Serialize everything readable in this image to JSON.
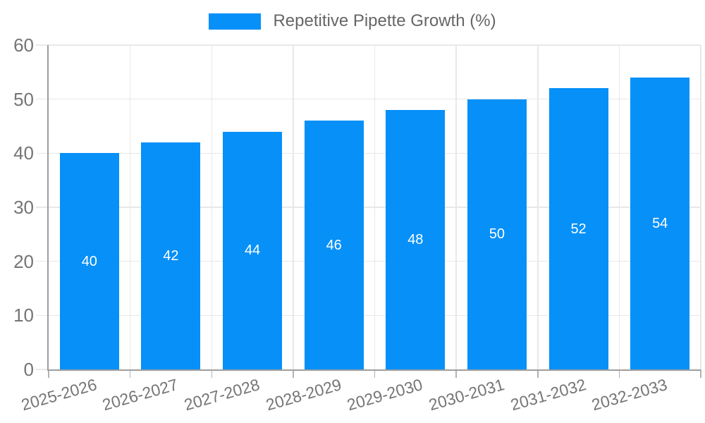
{
  "legend": {
    "label": "Repetitive Pipette Growth (%)"
  },
  "chart_data": {
    "type": "bar",
    "title": "Repetitive Pipette Growth (%)",
    "categories": [
      "2025-2026",
      "2026-2027",
      "2027-2028",
      "2028-2029",
      "2029-2030",
      "2030-2031",
      "2031-2032",
      "2032-2033"
    ],
    "values": [
      40,
      42,
      44,
      46,
      48,
      50,
      52,
      54
    ],
    "data_labels": [
      40,
      42,
      44,
      46,
      48,
      50,
      52,
      54
    ],
    "data_label_position": "inside-center",
    "xlabel": "",
    "ylabel": "",
    "ylim": [
      0,
      60
    ],
    "y_ticks": [
      0,
      10,
      20,
      30,
      40,
      50,
      60
    ],
    "grid": true,
    "legend_position": "top",
    "x_tick_rotation_deg": -16
  },
  "colors": {
    "bar": "#0690f8",
    "grid": "#e8e8e8",
    "axis": "#9e9e9e",
    "tick": "#b3b3b3",
    "y_tick": "#dcdcdc",
    "tick_label": "#757575",
    "legend_text": "#666666",
    "data_label": "#ffffff",
    "background": "#ffffff"
  }
}
